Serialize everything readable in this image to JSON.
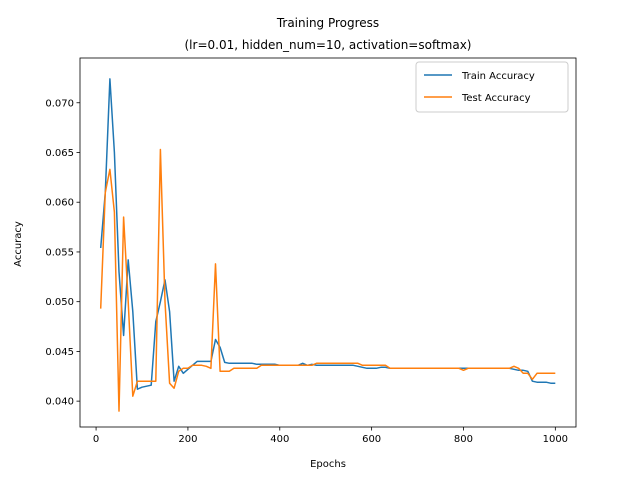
{
  "chart_data": {
    "type": "line",
    "title": "Training Progress",
    "subtitle": "(lr=0.01, hidden_num=10, activation=softmax)",
    "xlabel": "Epochs",
    "ylabel": "Accuracy",
    "xlim": [
      -35,
      1045
    ],
    "ylim": [
      0.0374,
      0.0745
    ],
    "xticks": [
      0,
      200,
      400,
      600,
      800,
      1000
    ],
    "xtick_labels": [
      "0",
      "200",
      "400",
      "600",
      "800",
      "1000"
    ],
    "yticks": [
      0.04,
      0.045,
      0.05,
      0.055,
      0.06,
      0.065,
      0.07
    ],
    "ytick_labels": [
      "0.040",
      "0.045",
      "0.050",
      "0.055",
      "0.060",
      "0.065",
      "0.070"
    ],
    "grid": false,
    "legend_position": "top-right",
    "colors": {
      "train": "#1f77b4",
      "test": "#ff7f0e"
    },
    "x": [
      10,
      20,
      30,
      40,
      50,
      60,
      70,
      80,
      90,
      100,
      110,
      120,
      130,
      140,
      150,
      160,
      170,
      180,
      190,
      200,
      210,
      220,
      230,
      240,
      250,
      260,
      270,
      280,
      290,
      300,
      310,
      320,
      330,
      340,
      350,
      360,
      370,
      380,
      390,
      400,
      410,
      420,
      430,
      440,
      450,
      460,
      470,
      480,
      490,
      500,
      510,
      520,
      530,
      540,
      550,
      560,
      570,
      580,
      590,
      600,
      610,
      620,
      630,
      640,
      650,
      660,
      670,
      680,
      690,
      700,
      710,
      720,
      730,
      740,
      750,
      760,
      770,
      780,
      790,
      800,
      810,
      820,
      830,
      840,
      850,
      860,
      870,
      880,
      890,
      900,
      910,
      920,
      930,
      940,
      950,
      960,
      970,
      980,
      990,
      1000
    ],
    "series": [
      {
        "name": "Train Accuracy",
        "values": [
          0.0554,
          0.061,
          0.0724,
          0.065,
          0.053,
          0.0466,
          0.0542,
          0.049,
          0.0412,
          0.0414,
          0.0415,
          0.0416,
          0.048,
          0.05,
          0.0522,
          0.049,
          0.042,
          0.0435,
          0.0428,
          0.0432,
          0.0436,
          0.044,
          0.044,
          0.044,
          0.044,
          0.0462,
          0.0454,
          0.0439,
          0.0438,
          0.0438,
          0.0438,
          0.0438,
          0.0438,
          0.0438,
          0.0437,
          0.0437,
          0.0437,
          0.0437,
          0.0437,
          0.0436,
          0.0436,
          0.0436,
          0.0436,
          0.0436,
          0.0438,
          0.0436,
          0.0437,
          0.0436,
          0.0436,
          0.0436,
          0.0436,
          0.0436,
          0.0436,
          0.0436,
          0.0436,
          0.0436,
          0.0435,
          0.0434,
          0.0433,
          0.0433,
          0.0433,
          0.0434,
          0.0434,
          0.0433,
          0.0433,
          0.0433,
          0.0433,
          0.0433,
          0.0433,
          0.0433,
          0.0433,
          0.0433,
          0.0433,
          0.0433,
          0.0433,
          0.0433,
          0.0433,
          0.0433,
          0.0433,
          0.0433,
          0.0433,
          0.0433,
          0.0433,
          0.0433,
          0.0433,
          0.0433,
          0.0433,
          0.0433,
          0.0433,
          0.0433,
          0.0432,
          0.0431,
          0.0431,
          0.043,
          0.042,
          0.0419,
          0.0419,
          0.0419,
          0.0418,
          0.0418
        ]
      },
      {
        "name": "Test Accuracy",
        "values": [
          0.0493,
          0.061,
          0.0633,
          0.059,
          0.039,
          0.0585,
          0.05,
          0.0405,
          0.042,
          0.042,
          0.042,
          0.042,
          0.042,
          0.0653,
          0.05,
          0.0418,
          0.0413,
          0.043,
          0.0433,
          0.0433,
          0.0436,
          0.0436,
          0.0436,
          0.0435,
          0.0433,
          0.0538,
          0.043,
          0.043,
          0.043,
          0.0433,
          0.0433,
          0.0433,
          0.0433,
          0.0433,
          0.0433,
          0.0436,
          0.0436,
          0.0436,
          0.0436,
          0.0436,
          0.0436,
          0.0436,
          0.0436,
          0.0436,
          0.0436,
          0.0436,
          0.0436,
          0.0438,
          0.0438,
          0.0438,
          0.0438,
          0.0438,
          0.0438,
          0.0438,
          0.0438,
          0.0438,
          0.0438,
          0.0436,
          0.0436,
          0.0436,
          0.0436,
          0.0436,
          0.0436,
          0.0433,
          0.0433,
          0.0433,
          0.0433,
          0.0433,
          0.0433,
          0.0433,
          0.0433,
          0.0433,
          0.0433,
          0.0433,
          0.0433,
          0.0433,
          0.0433,
          0.0433,
          0.0433,
          0.0431,
          0.0433,
          0.0433,
          0.0433,
          0.0433,
          0.0433,
          0.0433,
          0.0433,
          0.0433,
          0.0433,
          0.0433,
          0.0435,
          0.0433,
          0.0428,
          0.0428,
          0.0422,
          0.0428,
          0.0428,
          0.0428,
          0.0428,
          0.0428
        ]
      }
    ]
  }
}
